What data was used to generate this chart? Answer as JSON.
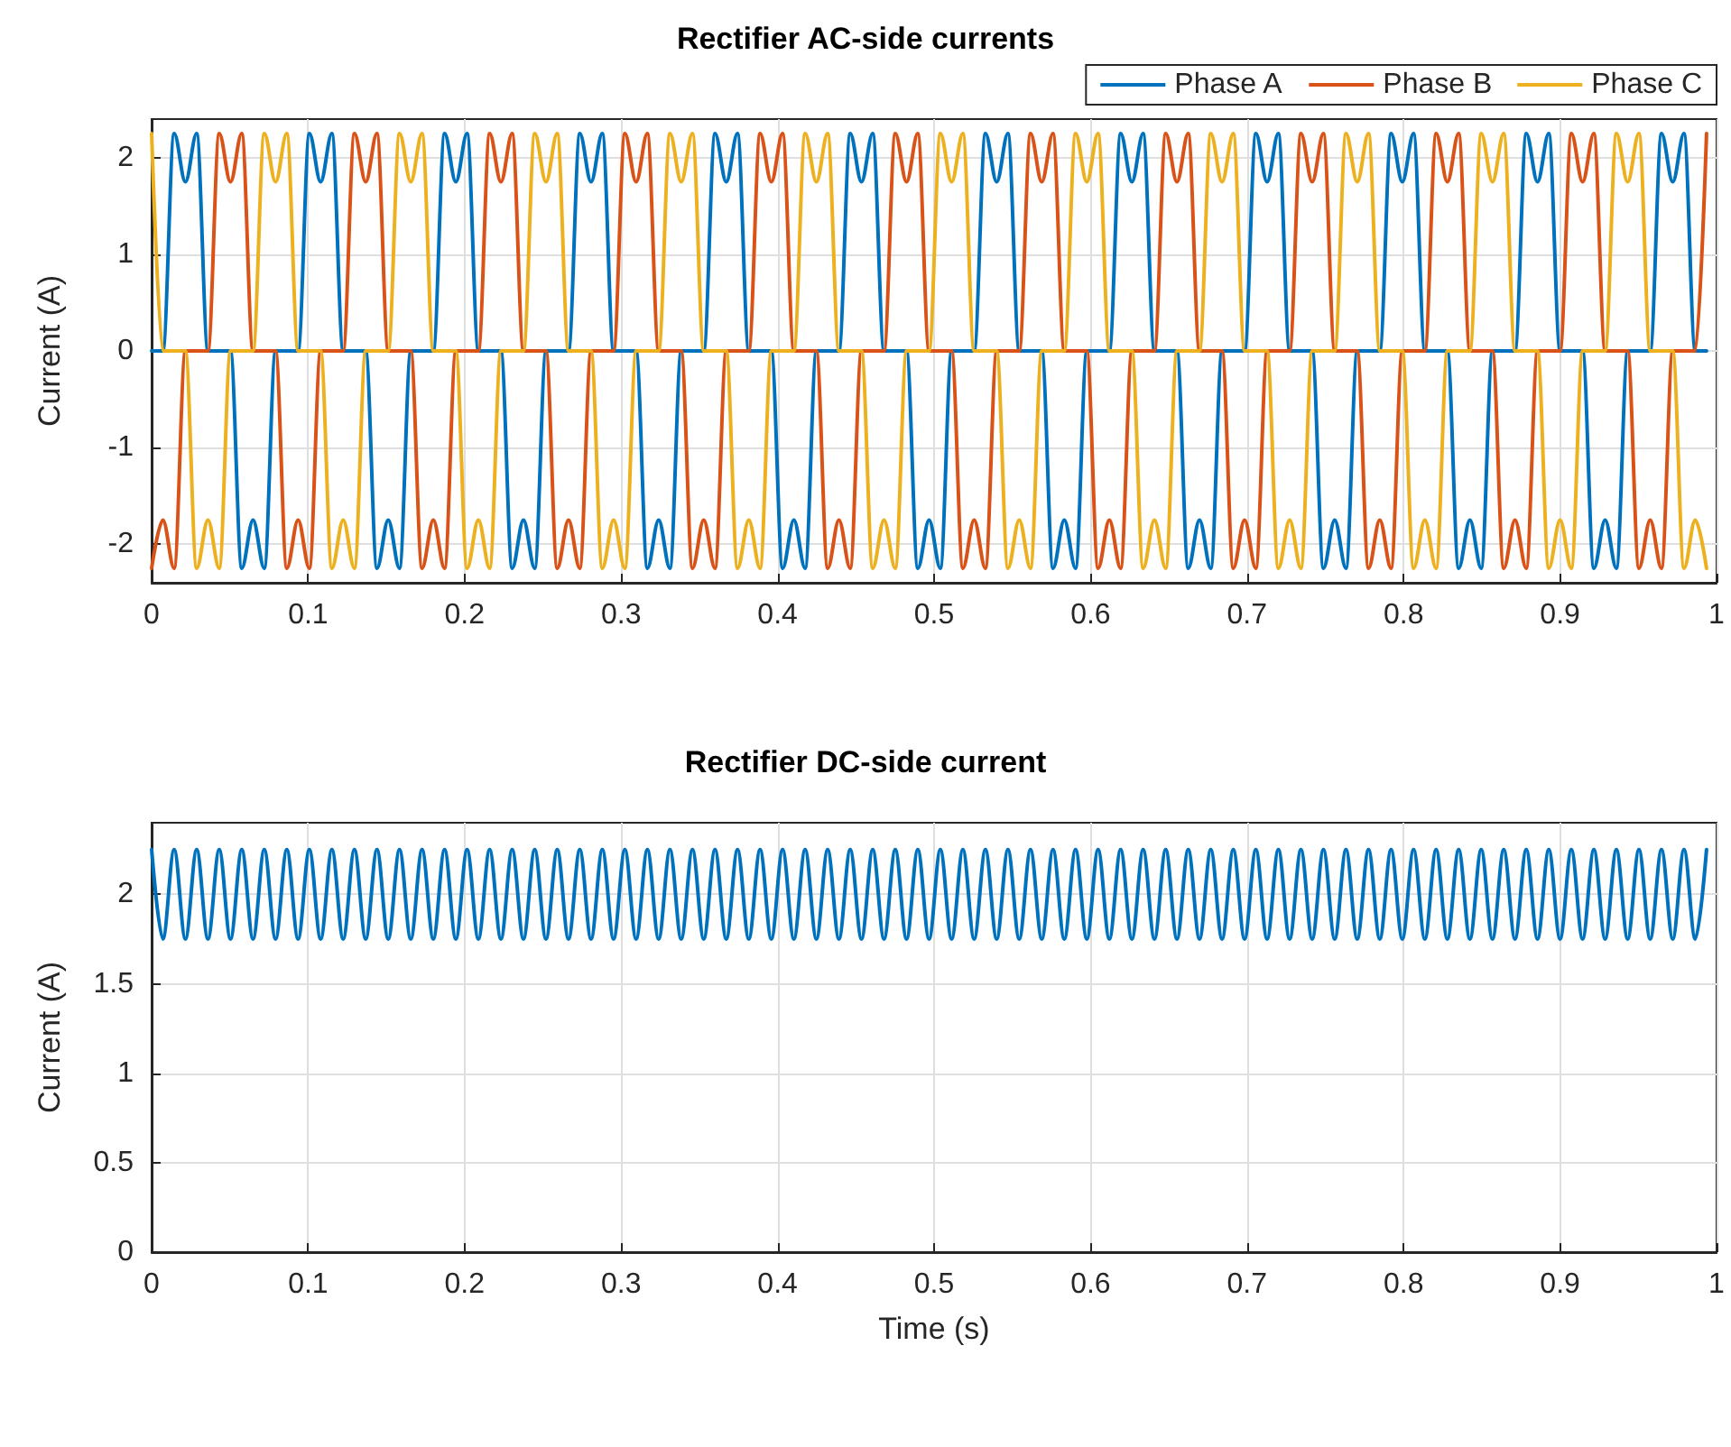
{
  "chart_data": [
    {
      "type": "line",
      "title": "Rectifier AC-side currents",
      "ylabel": "Current (A)",
      "x": [
        0,
        0.0072,
        0.0144,
        0.0216,
        0.0288,
        0.036,
        0.0432,
        0.0504,
        0.0576,
        0.0648,
        0.072,
        0.0792,
        0.0864,
        0.0936,
        0.1008,
        0.108,
        0.1152,
        0.1224,
        0.1296,
        0.1368,
        0.144,
        0.1512,
        0.1584,
        0.1656,
        0.1728,
        0.18,
        0.1872,
        0.1944,
        0.2016,
        0.2088,
        0.216,
        0.2232,
        0.2304,
        0.2376,
        0.2448,
        0.252,
        0.2592,
        0.2664,
        0.2736,
        0.2808,
        0.288,
        0.2952,
        0.3024,
        0.3096,
        0.3168,
        0.324,
        0.3312,
        0.3384,
        0.3456,
        0.3528,
        0.36,
        0.3672,
        0.3744,
        0.3816,
        0.3888,
        0.396,
        0.4032,
        0.4104,
        0.4176,
        0.4248,
        0.432,
        0.4392,
        0.4464,
        0.4536,
        0.4608,
        0.468,
        0.4752,
        0.4824,
        0.4896,
        0.4968,
        0.504,
        0.5112,
        0.5184,
        0.5256,
        0.5328,
        0.54,
        0.5472,
        0.5544,
        0.5616,
        0.5688,
        0.576,
        0.5832,
        0.5904,
        0.5976,
        0.6048,
        0.612,
        0.6192,
        0.6264,
        0.6336,
        0.6408,
        0.648,
        0.6552,
        0.6624,
        0.6696,
        0.6768,
        0.684,
        0.6912,
        0.6984,
        0.7056,
        0.7128,
        0.72,
        0.7272,
        0.7344,
        0.7416,
        0.7488,
        0.756,
        0.7632,
        0.7704,
        0.7776,
        0.7848,
        0.792,
        0.7992,
        0.8064,
        0.8136,
        0.8208,
        0.828,
        0.8352,
        0.8424,
        0.8496,
        0.8568,
        0.864,
        0.8712,
        0.8784,
        0.8856,
        0.8928,
        0.9,
        0.9072,
        0.9144,
        0.9216,
        0.9288,
        0.936,
        0.9432,
        0.9504,
        0.9576,
        0.9648,
        0.972,
        0.9792,
        0.9864,
        0.9936
      ],
      "series": [
        {
          "name": "Phase A",
          "color": "#0072bd",
          "values": [
            0,
            0,
            2.25,
            1.75,
            2.25,
            0,
            0,
            0,
            -2.25,
            -1.75,
            -2.25,
            0,
            0,
            0,
            2.25,
            1.75,
            2.25,
            0,
            0,
            0,
            -2.25,
            -1.75,
            -2.25,
            0,
            0,
            0,
            2.25,
            1.75,
            2.25,
            0,
            0,
            0,
            -2.25,
            -1.75,
            -2.25,
            0,
            0,
            0,
            2.25,
            1.75,
            2.25,
            0,
            0,
            0,
            -2.25,
            -1.75,
            -2.25,
            0,
            0,
            0,
            2.25,
            1.75,
            2.25,
            0,
            0,
            0,
            -2.25,
            -1.75,
            -2.25,
            0,
            0,
            0,
            2.25,
            1.75,
            2.25,
            0,
            0,
            0,
            -2.25,
            -1.75,
            -2.25,
            0,
            0,
            0,
            2.25,
            1.75,
            2.25,
            0,
            0,
            0,
            -2.25,
            -1.75,
            -2.25,
            0,
            0,
            0,
            2.25,
            1.75,
            2.25,
            0,
            0,
            0,
            -2.25,
            -1.75,
            -2.25,
            0,
            0,
            0,
            2.25,
            1.75,
            2.25,
            0,
            0,
            0,
            -2.25,
            -1.75,
            -2.25,
            0,
            0,
            0,
            2.25,
            1.75,
            2.25,
            0,
            0,
            0,
            -2.25,
            -1.75,
            -2.25,
            0,
            0,
            0,
            2.25,
            1.75,
            2.25,
            0,
            0,
            0,
            -2.25,
            -1.75,
            -2.25,
            0,
            0,
            0,
            2.25,
            1.75,
            2.25,
            0,
            0
          ]
        },
        {
          "name": "Phase B",
          "color": "#d95319",
          "values": [
            -2.25,
            -1.75,
            -2.25,
            0,
            0,
            0,
            2.25,
            1.75,
            2.25,
            0,
            0,
            0,
            -2.25,
            -1.75,
            -2.25,
            0,
            0,
            0,
            2.25,
            1.75,
            2.25,
            0,
            0,
            0,
            -2.25,
            -1.75,
            -2.25,
            0,
            0,
            0,
            2.25,
            1.75,
            2.25,
            0,
            0,
            0,
            -2.25,
            -1.75,
            -2.25,
            0,
            0,
            0,
            2.25,
            1.75,
            2.25,
            0,
            0,
            0,
            -2.25,
            -1.75,
            -2.25,
            0,
            0,
            0,
            2.25,
            1.75,
            2.25,
            0,
            0,
            0,
            -2.25,
            -1.75,
            -2.25,
            0,
            0,
            0,
            2.25,
            1.75,
            2.25,
            0,
            0,
            0,
            -2.25,
            -1.75,
            -2.25,
            0,
            0,
            0,
            2.25,
            1.75,
            2.25,
            0,
            0,
            0,
            -2.25,
            -1.75,
            -2.25,
            0,
            0,
            0,
            2.25,
            1.75,
            2.25,
            0,
            0,
            0,
            -2.25,
            -1.75,
            -2.25,
            0,
            0,
            0,
            2.25,
            1.75,
            2.25,
            0,
            0,
            0,
            -2.25,
            -1.75,
            -2.25,
            0,
            0,
            0,
            2.25,
            1.75,
            2.25,
            0,
            0,
            0,
            -2.25,
            -1.75,
            -2.25,
            0,
            0,
            0,
            2.25,
            1.75,
            2.25,
            0,
            0,
            0,
            -2.25,
            -1.75,
            -2.25,
            0,
            0,
            0,
            2.25
          ]
        },
        {
          "name": "Phase C",
          "color": "#edb120",
          "values": [
            2.25,
            0,
            0,
            0,
            -2.25,
            -1.75,
            -2.25,
            0,
            0,
            0,
            2.25,
            1.75,
            2.25,
            0,
            0,
            0,
            -2.25,
            -1.75,
            -2.25,
            0,
            0,
            0,
            2.25,
            1.75,
            2.25,
            0,
            0,
            0,
            -2.25,
            -1.75,
            -2.25,
            0,
            0,
            0,
            2.25,
            1.75,
            2.25,
            0,
            0,
            0,
            -2.25,
            -1.75,
            -2.25,
            0,
            0,
            0,
            2.25,
            1.75,
            2.25,
            0,
            0,
            0,
            -2.25,
            -1.75,
            -2.25,
            0,
            0,
            0,
            2.25,
            1.75,
            2.25,
            0,
            0,
            0,
            -2.25,
            -1.75,
            -2.25,
            0,
            0,
            0,
            2.25,
            1.75,
            2.25,
            0,
            0,
            0,
            -2.25,
            -1.75,
            -2.25,
            0,
            0,
            0,
            2.25,
            1.75,
            2.25,
            0,
            0,
            0,
            -2.25,
            -1.75,
            -2.25,
            0,
            0,
            0,
            2.25,
            1.75,
            2.25,
            0,
            0,
            0,
            -2.25,
            -1.75,
            -2.25,
            0,
            0,
            0,
            2.25,
            1.75,
            2.25,
            0,
            0,
            0,
            -2.25,
            -1.75,
            -2.25,
            0,
            0,
            0,
            2.25,
            1.75,
            2.25,
            0,
            0,
            0,
            -2.25,
            -1.75,
            -2.25,
            0,
            0,
            0,
            2.25,
            1.75,
            2.25,
            0,
            0,
            0,
            -2.25,
            -1.75,
            -2.25
          ]
        }
      ],
      "xlim": [
        0,
        1
      ],
      "xticks": [
        0,
        0.1,
        0.2,
        0.3,
        0.4,
        0.5,
        0.6,
        0.7,
        0.8,
        0.9,
        1
      ],
      "ylim": [
        -2.4,
        2.4
      ],
      "yticks": [
        -2,
        -1,
        0,
        1,
        2
      ],
      "grid": true,
      "legend": "top right"
    },
    {
      "type": "line",
      "title": "Rectifier DC-side current",
      "xlabel": "Time (s)",
      "ylabel": "Current (A)",
      "x": [
        0,
        0.0072,
        0.0144,
        0.0216,
        0.0288,
        0.036,
        0.0432,
        0.0504,
        0.0576,
        0.0648,
        0.072,
        0.0792,
        0.0864,
        0.0936,
        0.1008,
        0.108,
        0.1152,
        0.1224,
        0.1296,
        0.1368,
        0.144,
        0.1512,
        0.1584,
        0.1656,
        0.1728,
        0.18,
        0.1872,
        0.1944,
        0.2016,
        0.2088,
        0.216,
        0.2232,
        0.2304,
        0.2376,
        0.2448,
        0.252,
        0.2592,
        0.2664,
        0.2736,
        0.2808,
        0.288,
        0.2952,
        0.3024,
        0.3096,
        0.3168,
        0.324,
        0.3312,
        0.3384,
        0.3456,
        0.3528,
        0.36,
        0.3672,
        0.3744,
        0.3816,
        0.3888,
        0.396,
        0.4032,
        0.4104,
        0.4176,
        0.4248,
        0.432,
        0.4392,
        0.4464,
        0.4536,
        0.4608,
        0.468,
        0.4752,
        0.4824,
        0.4896,
        0.4968,
        0.504,
        0.5112,
        0.5184,
        0.5256,
        0.5328,
        0.54,
        0.5472,
        0.5544,
        0.5616,
        0.5688,
        0.576,
        0.5832,
        0.5904,
        0.5976,
        0.6048,
        0.612,
        0.6192,
        0.6264,
        0.6336,
        0.6408,
        0.648,
        0.6552,
        0.6624,
        0.6696,
        0.6768,
        0.684,
        0.6912,
        0.6984,
        0.7056,
        0.7128,
        0.72,
        0.7272,
        0.7344,
        0.7416,
        0.7488,
        0.756,
        0.7632,
        0.7704,
        0.7776,
        0.7848,
        0.792,
        0.7992,
        0.8064,
        0.8136,
        0.8208,
        0.828,
        0.8352,
        0.8424,
        0.8496,
        0.8568,
        0.864,
        0.8712,
        0.8784,
        0.8856,
        0.8928,
        0.9,
        0.9072,
        0.9144,
        0.9216,
        0.9288,
        0.936,
        0.9432,
        0.9504,
        0.9576,
        0.9648,
        0.972,
        0.9792,
        0.9864,
        0.9936
      ],
      "series": [
        {
          "color": "#0072bd",
          "values": [
            2.25,
            1.75,
            2.25,
            1.75,
            2.25,
            1.75,
            2.25,
            1.75,
            2.25,
            1.75,
            2.25,
            1.75,
            2.25,
            1.75,
            2.25,
            1.75,
            2.25,
            1.75,
            2.25,
            1.75,
            2.25,
            1.75,
            2.25,
            1.75,
            2.25,
            1.75,
            2.25,
            1.75,
            2.25,
            1.75,
            2.25,
            1.75,
            2.25,
            1.75,
            2.25,
            1.75,
            2.25,
            1.75,
            2.25,
            1.75,
            2.25,
            1.75,
            2.25,
            1.75,
            2.25,
            1.75,
            2.25,
            1.75,
            2.25,
            1.75,
            2.25,
            1.75,
            2.25,
            1.75,
            2.25,
            1.75,
            2.25,
            1.75,
            2.25,
            1.75,
            2.25,
            1.75,
            2.25,
            1.75,
            2.25,
            1.75,
            2.25,
            1.75,
            2.25,
            1.75,
            2.25,
            1.75,
            2.25,
            1.75,
            2.25,
            1.75,
            2.25,
            1.75,
            2.25,
            1.75,
            2.25,
            1.75,
            2.25,
            1.75,
            2.25,
            1.75,
            2.25,
            1.75,
            2.25,
            1.75,
            2.25,
            1.75,
            2.25,
            1.75,
            2.25,
            1.75,
            2.25,
            1.75,
            2.25,
            1.75,
            2.25,
            1.75,
            2.25,
            1.75,
            2.25,
            1.75,
            2.25,
            1.75,
            2.25,
            1.75,
            2.25,
            1.75,
            2.25,
            1.75,
            2.25,
            1.75,
            2.25,
            1.75,
            2.25,
            1.75,
            2.25,
            1.75,
            2.25,
            1.75,
            2.25,
            1.75,
            2.25,
            1.75,
            2.25,
            1.75,
            2.25,
            1.75,
            2.25,
            1.75,
            2.25,
            1.75,
            2.25,
            1.75,
            2.25
          ]
        }
      ],
      "xlim": [
        0,
        1
      ],
      "xticks": [
        0,
        0.1,
        0.2,
        0.3,
        0.4,
        0.5,
        0.6,
        0.7,
        0.8,
        0.9,
        1
      ],
      "ylim": [
        0,
        2.4
      ],
      "yticks": [
        0,
        0.5,
        1,
        1.5,
        2
      ],
      "grid": true
    }
  ]
}
